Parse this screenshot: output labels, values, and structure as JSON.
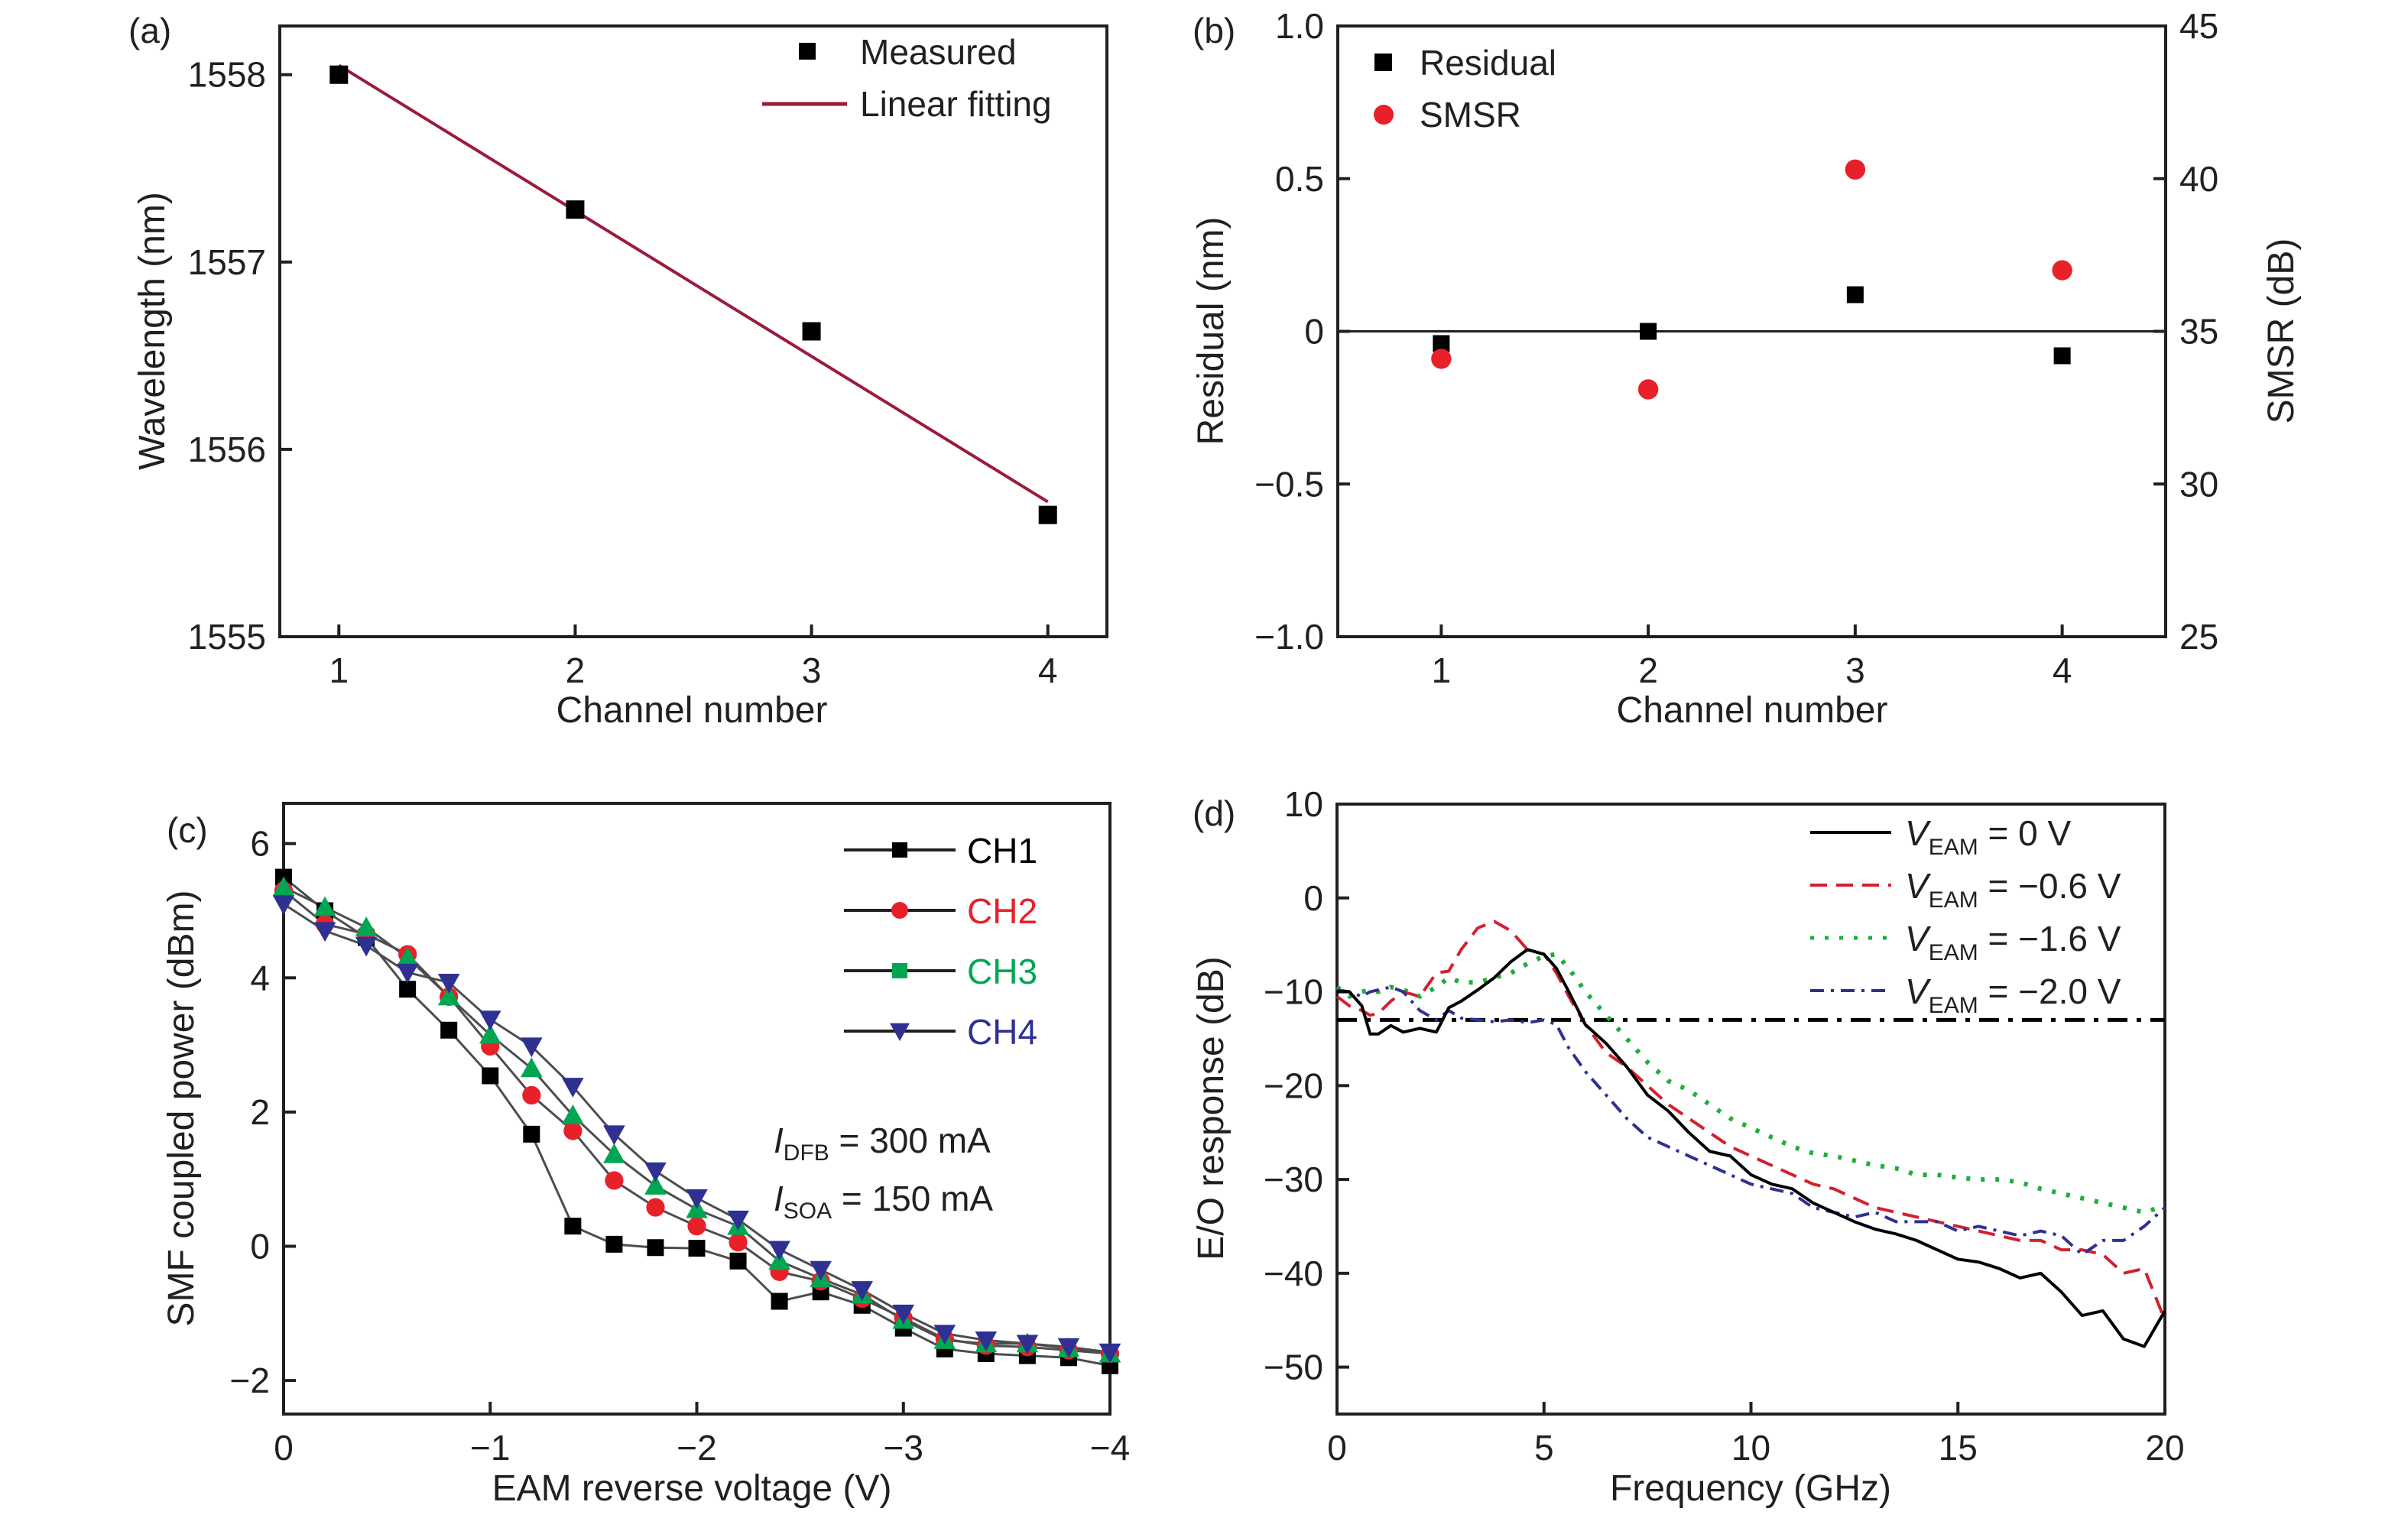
{
  "figure": {
    "panels": [
      "(a)",
      "(b)",
      "(c)",
      "(d)"
    ]
  },
  "colors": {
    "black": "#231f20",
    "fit": "#9b1b3a",
    "red": "#e8202a",
    "green": "#00a651",
    "blue": "#2e3192"
  },
  "chart_data": [
    {
      "panel": "(a)",
      "type": "scatter",
      "title": "",
      "xlabel": "Channel number",
      "ylabel": "Wavelength (nm)",
      "xlim": [
        0.75,
        4.25
      ],
      "ylim": [
        1555,
        1558.26
      ],
      "xticks": [
        1,
        2,
        3,
        4
      ],
      "xtick_labels": [
        "1",
        "2",
        "3",
        "4"
      ],
      "yticks": [
        1555,
        1556,
        1557,
        1558
      ],
      "ytick_labels": [
        "1555",
        "1556",
        "1557",
        "1558"
      ],
      "grid": false,
      "legend_position": "top-right",
      "series": [
        {
          "name": "Measured",
          "kind": "marker-square",
          "color": "#000000",
          "x": [
            1,
            2,
            3,
            4
          ],
          "y": [
            1558.0,
            1557.28,
            1556.63,
            1555.65
          ]
        },
        {
          "name": "Linear fitting",
          "kind": "line",
          "color": "#9b1b3a",
          "x": [
            1,
            4
          ],
          "y": [
            1558.05,
            1555.72
          ]
        }
      ]
    },
    {
      "panel": "(b)",
      "type": "scatter",
      "title": "",
      "xlabel": "Channel number",
      "ylabel": "Residual (nm)",
      "y2label": "SMSR (dB)",
      "xlim": [
        0.5,
        4.5
      ],
      "ylim": [
        -1.0,
        1.0
      ],
      "y2lim": [
        25,
        45
      ],
      "xticks": [
        1,
        2,
        3,
        4
      ],
      "xtick_labels": [
        "1",
        "2",
        "3",
        "4"
      ],
      "yticks": [
        -1.0,
        -0.5,
        0,
        0.5,
        1.0
      ],
      "ytick_labels": [
        "−1.0",
        "−0.5",
        "0",
        "0.5",
        "1.0"
      ],
      "y2ticks": [
        25,
        30,
        35,
        40,
        45
      ],
      "y2tick_labels": [
        "25",
        "30",
        "35",
        "40",
        "45"
      ],
      "reference_line": {
        "axis": "y",
        "value": 0
      },
      "grid": false,
      "legend_position": "top-left",
      "series": [
        {
          "name": "Residual",
          "kind": "marker-square",
          "axis": "left",
          "color": "#000000",
          "x": [
            1,
            2,
            3,
            4
          ],
          "y": [
            -0.04,
            0.0,
            0.12,
            -0.08
          ]
        },
        {
          "name": "SMSR",
          "kind": "marker-circle",
          "axis": "right",
          "color": "#e8202a",
          "x": [
            1,
            2,
            3,
            4
          ],
          "y": [
            34.1,
            33.1,
            40.3,
            37.0
          ]
        }
      ]
    },
    {
      "panel": "(c)",
      "type": "line",
      "title": "",
      "xlabel": "EAM reverse voltage (V)",
      "ylabel": "SMF coupled power (dBm)",
      "xlim": [
        0,
        -4
      ],
      "ylim": [
        -2.5,
        6.6
      ],
      "xticks": [
        0,
        -1,
        -2,
        -3,
        -4
      ],
      "xtick_labels": [
        "0",
        "−1",
        "−2",
        "−3",
        "−4"
      ],
      "yticks": [
        -2,
        0,
        2,
        4,
        6
      ],
      "ytick_labels": [
        "−2",
        "0",
        "2",
        "4",
        "6"
      ],
      "grid": false,
      "legend_position": "top-right",
      "annotations": [
        {
          "main": "I",
          "sub": "DFB",
          "rest": " = 300 mA"
        },
        {
          "main": "I",
          "sub": "SOA",
          "rest": " = 150 mA"
        }
      ],
      "x": [
        0,
        -0.2,
        -0.4,
        -0.6,
        -0.8,
        -1.0,
        -1.2,
        -1.4,
        -1.6,
        -1.8,
        -2.0,
        -2.2,
        -2.4,
        -2.6,
        -2.8,
        -3.0,
        -3.2,
        -3.4,
        -3.6,
        -3.8,
        -4.0
      ],
      "series": [
        {
          "name": "CH1",
          "marker": "square",
          "color": "#000000",
          "values": [
            5.5,
            5.0,
            4.6,
            3.83,
            3.22,
            2.54,
            1.67,
            0.3,
            0.03,
            -0.02,
            -0.03,
            -0.22,
            -0.82,
            -0.68,
            -0.88,
            -1.22,
            -1.53,
            -1.6,
            -1.63,
            -1.66,
            -1.78
          ]
        },
        {
          "name": "CH2",
          "marker": "circle",
          "color": "#e8202a",
          "values": [
            5.3,
            4.8,
            4.65,
            4.35,
            3.72,
            2.98,
            2.25,
            1.72,
            0.98,
            0.58,
            0.3,
            0.06,
            -0.38,
            -0.52,
            -0.78,
            -1.07,
            -1.38,
            -1.48,
            -1.5,
            -1.55,
            -1.6
          ]
        },
        {
          "name": "CH3",
          "marker": "triangle-up",
          "legend_marker": "square",
          "color": "#00a651",
          "values": [
            5.35,
            5.05,
            4.75,
            4.3,
            3.72,
            3.15,
            2.65,
            1.95,
            1.37,
            0.9,
            0.55,
            0.3,
            -0.22,
            -0.48,
            -0.72,
            -1.1,
            -1.4,
            -1.45,
            -1.45,
            -1.52,
            -1.6
          ]
        },
        {
          "name": "CH4",
          "marker": "triangle-down",
          "color": "#2e3192",
          "values": [
            5.1,
            4.7,
            4.48,
            4.08,
            3.93,
            3.38,
            2.98,
            2.38,
            1.67,
            1.12,
            0.72,
            0.4,
            -0.05,
            -0.35,
            -0.65,
            -1.0,
            -1.3,
            -1.4,
            -1.45,
            -1.5,
            -1.58
          ]
        }
      ]
    },
    {
      "panel": "(d)",
      "type": "line",
      "title": "",
      "xlabel": "Frequency (GHz)",
      "ylabel": "E/O response (dB)",
      "xlim": [
        0,
        20
      ],
      "ylim": [
        -55,
        10
      ],
      "xticks": [
        0,
        5,
        10,
        15,
        20
      ],
      "xtick_labels": [
        "0",
        "5",
        "10",
        "15",
        "20"
      ],
      "yticks": [
        -50,
        -40,
        -30,
        -20,
        -10,
        0,
        10
      ],
      "ytick_labels": [
        "−50",
        "−40",
        "−30",
        "−20",
        "−10",
        "0",
        "10"
      ],
      "grid": false,
      "legend_position": "top-right",
      "reference_line": {
        "axis": "y",
        "value": -13,
        "style": "dash-dot"
      },
      "x": [
        0,
        0.3,
        0.6,
        0.8,
        1.0,
        1.3,
        1.6,
        2.0,
        2.4,
        2.7,
        3.0,
        3.4,
        3.8,
        4.2,
        4.6,
        5.0,
        5.3,
        5.6,
        6.0,
        6.5,
        7.0,
        7.5,
        8.0,
        8.5,
        9.0,
        9.5,
        10.0,
        10.5,
        11.0,
        11.5,
        12.0,
        12.5,
        13.0,
        13.5,
        14.0,
        14.5,
        15.0,
        15.5,
        16.0,
        16.5,
        17.0,
        17.5,
        18.0,
        18.5,
        19.0,
        19.5,
        20.0
      ],
      "series": [
        {
          "name": "V_EAM = 0 V",
          "label_main": "V",
          "label_sub": "EAM",
          "label_rest": " = 0 V",
          "dash": "solid",
          "color": "#000000",
          "values": [
            -10.0,
            -10.0,
            -11.5,
            -14.5,
            -14.5,
            -13.6,
            -14.3,
            -13.9,
            -14.3,
            -11.7,
            -11.0,
            -9.8,
            -8.5,
            -6.8,
            -5.5,
            -6.0,
            -7.5,
            -10.0,
            -13.5,
            -15.5,
            -18.0,
            -21.0,
            -22.7,
            -25.0,
            -27.0,
            -27.5,
            -29.5,
            -30.5,
            -31.0,
            -32.5,
            -33.5,
            -34.5,
            -35.3,
            -35.8,
            -36.5,
            -37.5,
            -38.5,
            -38.8,
            -39.5,
            -40.5,
            -40.0,
            -42.0,
            -44.5,
            -44.0,
            -47.0,
            -47.8,
            -44.0
          ]
        },
        {
          "name": "V_EAM = −0.6 V",
          "label_main": "V",
          "label_sub": "EAM",
          "label_rest": " = −0.6 V",
          "dash": "dashed",
          "color": "#d3202e",
          "values": [
            -10.5,
            -11.5,
            -12.0,
            -12.5,
            -12.3,
            -11.0,
            -10.0,
            -10.5,
            -8.0,
            -7.8,
            -5.5,
            -3.2,
            -2.5,
            -3.5,
            -5.5,
            -6.0,
            -8.0,
            -10.5,
            -13.5,
            -16.5,
            -18.0,
            -20.0,
            -22.0,
            -23.5,
            -25.0,
            -26.5,
            -27.5,
            -28.5,
            -29.5,
            -30.5,
            -31.0,
            -32.0,
            -33.0,
            -33.5,
            -34.0,
            -34.5,
            -35.0,
            -35.5,
            -36.0,
            -36.5,
            -36.5,
            -37.5,
            -37.5,
            -38.0,
            -40.0,
            -39.5,
            -45.0
          ]
        },
        {
          "name": "V_EAM = −1.6 V",
          "label_main": "V",
          "label_sub": "EAM",
          "label_rest": " = −1.6 V",
          "dash": "dotted",
          "color": "#1fae3b",
          "values": [
            -9.5,
            -10.5,
            -10.0,
            -9.8,
            -10.0,
            -9.5,
            -9.8,
            -10.5,
            -9.5,
            -8.5,
            -9.0,
            -9.0,
            -8.5,
            -8.0,
            -7.0,
            -6.2,
            -6.0,
            -7.5,
            -10.0,
            -12.5,
            -15.0,
            -17.5,
            -19.5,
            -20.5,
            -22.0,
            -23.5,
            -24.5,
            -25.5,
            -26.5,
            -27.2,
            -27.5,
            -28.0,
            -28.5,
            -28.8,
            -29.5,
            -29.5,
            -29.8,
            -30.0,
            -30.0,
            -30.3,
            -31.0,
            -31.5,
            -32.0,
            -32.5,
            -33.0,
            -33.5,
            -32.8
          ]
        },
        {
          "name": "V_EAM = −2.0 V",
          "label_main": "V",
          "label_sub": "EAM",
          "label_rest": " = −2.0 V",
          "dash": "dash-dot",
          "color": "#2e3192",
          "values": [
            -9.8,
            -10.0,
            -10.5,
            -10.0,
            -9.8,
            -9.5,
            -10.0,
            -12.0,
            -13.0,
            -12.0,
            -12.8,
            -13.0,
            -13.2,
            -13.0,
            -13.3,
            -13.0,
            -13.5,
            -16.0,
            -18.5,
            -21.0,
            -23.5,
            -25.5,
            -26.5,
            -27.5,
            -28.5,
            -29.5,
            -30.5,
            -31.0,
            -31.5,
            -33.0,
            -33.5,
            -34.0,
            -33.5,
            -34.5,
            -34.5,
            -34.5,
            -35.5,
            -35.0,
            -35.5,
            -36.0,
            -35.5,
            -36.0,
            -38.0,
            -36.5,
            -36.5,
            -35.0,
            -33.0
          ]
        }
      ]
    }
  ]
}
